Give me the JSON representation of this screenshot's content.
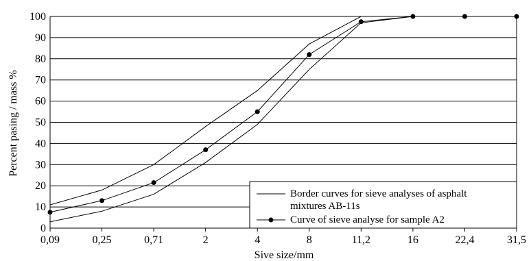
{
  "chart_data": {
    "type": "line",
    "title": "",
    "xlabel": "Sive size/mm",
    "ylabel": "Percent pasing / mass %",
    "categories": [
      "0,09",
      "0,25",
      "0,71",
      "2",
      "4",
      "8",
      "11,2",
      "16",
      "22,4",
      "31,5"
    ],
    "ylim": [
      0,
      100
    ],
    "yticks": [
      0,
      10,
      20,
      30,
      40,
      50,
      60,
      70,
      80,
      90,
      100
    ],
    "grid": "horizontal",
    "legend_position": "bottom-right",
    "series": [
      {
        "name": "Border curves for sieve analyses of asphalt mixtures AB-11s",
        "name_lines": [
          "Border curves for sieve analyses of asphalt",
          "mixtures AB-11s"
        ],
        "role": "upper-border",
        "values": [
          11,
          18,
          30,
          48,
          65,
          87,
          100,
          100,
          100,
          100
        ],
        "color": "#000000",
        "markers": false
      },
      {
        "name": "Border curves for sieve analyses of asphalt mixtures AB-11s",
        "role": "lower-border",
        "values": [
          3,
          8,
          16,
          31,
          49,
          75,
          97,
          100,
          100,
          100
        ],
        "color": "#000000",
        "markers": false
      },
      {
        "name": "Curve of sieve analyse for sample A2",
        "role": "sample",
        "values": [
          7.5,
          13,
          21.5,
          37,
          55,
          82,
          97.5,
          100,
          100,
          100
        ],
        "color": "#000000",
        "markers": true
      }
    ]
  }
}
